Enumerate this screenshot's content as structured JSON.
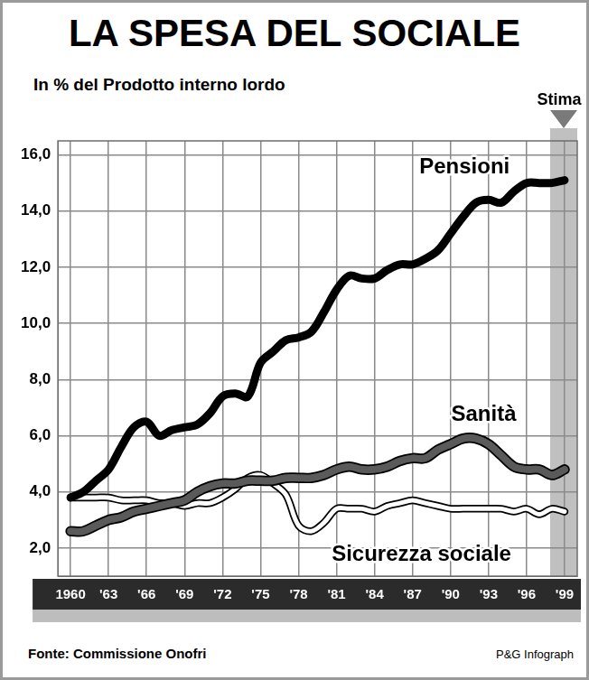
{
  "chart_data": {
    "type": "line",
    "title": "LA SPESA DEL SOCIALE",
    "subtitle": "In % del Prodotto interno lordo",
    "source": "Fonte: Commissione Onofri",
    "credit": "P&G Infograph",
    "annotations": [
      {
        "text": "Stima",
        "x": 1999
      }
    ],
    "x": [
      1960,
      1961,
      1962,
      1963,
      1964,
      1965,
      1966,
      1967,
      1968,
      1969,
      1970,
      1971,
      1972,
      1973,
      1974,
      1975,
      1976,
      1977,
      1978,
      1979,
      1980,
      1981,
      1982,
      1983,
      1984,
      1985,
      1986,
      1987,
      1988,
      1989,
      1990,
      1991,
      1992,
      1993,
      1994,
      1995,
      1996,
      1997,
      1998,
      1999
    ],
    "xlim": [
      1959,
      2000
    ],
    "xticks": [
      1960,
      {
        "value": 1963,
        "label": "'63"
      },
      {
        "value": 1966,
        "label": "'66"
      },
      {
        "value": 1969,
        "label": "'69"
      },
      {
        "value": 1972,
        "label": "'72"
      },
      {
        "value": 1975,
        "label": "'75"
      },
      {
        "value": 1978,
        "label": "'78"
      },
      {
        "value": 1981,
        "label": "'81"
      },
      {
        "value": 1984,
        "label": "'84"
      },
      {
        "value": 1987,
        "label": "'87"
      },
      {
        "value": 1990,
        "label": "'90"
      },
      {
        "value": 1993,
        "label": "'93"
      },
      {
        "value": 1996,
        "label": "'96"
      },
      {
        "value": 1999,
        "label": "'99"
      }
    ],
    "ylim": [
      1,
      16.5
    ],
    "yticks": [
      {
        "value": 2,
        "label": "2,0"
      },
      {
        "value": 4,
        "label": "4,0"
      },
      {
        "value": 6,
        "label": "6,0"
      },
      {
        "value": 8,
        "label": "8,0"
      },
      {
        "value": 10,
        "label": "10,0"
      },
      {
        "value": 12,
        "label": "12,0"
      },
      {
        "value": 14,
        "label": "14,0"
      },
      {
        "value": 16,
        "label": "16,0"
      }
    ],
    "grid": true,
    "series": [
      {
        "name": "Pensioni",
        "color": "#000000",
        "values": [
          3.8,
          4.0,
          4.4,
          4.8,
          5.6,
          6.3,
          6.5,
          6.0,
          6.2,
          6.3,
          6.4,
          6.8,
          7.4,
          7.5,
          7.4,
          8.6,
          9.0,
          9.4,
          9.5,
          9.7,
          10.4,
          11.2,
          11.7,
          11.6,
          11.6,
          11.9,
          12.1,
          12.1,
          12.3,
          12.6,
          13.2,
          13.8,
          14.3,
          14.4,
          14.3,
          14.7,
          15.0,
          15.0,
          15.0,
          15.1
        ]
      },
      {
        "name": "Sanità",
        "color": "#5a5a5a",
        "values": [
          2.6,
          2.6,
          2.8,
          3.0,
          3.1,
          3.3,
          3.4,
          3.5,
          3.6,
          3.7,
          4.0,
          4.2,
          4.3,
          4.3,
          4.4,
          4.4,
          4.4,
          4.5,
          4.5,
          4.5,
          4.6,
          4.8,
          4.9,
          4.8,
          4.8,
          4.9,
          5.1,
          5.2,
          5.2,
          5.5,
          5.7,
          5.9,
          5.9,
          5.7,
          5.3,
          4.9,
          4.8,
          4.8,
          4.6,
          4.8
        ]
      },
      {
        "name": "Sicurezza sociale",
        "color": "#ffffff",
        "values": [
          3.8,
          3.8,
          3.8,
          3.8,
          3.7,
          3.7,
          3.7,
          3.6,
          3.6,
          3.5,
          3.6,
          3.6,
          3.8,
          4.1,
          4.5,
          4.6,
          4.3,
          3.9,
          2.8,
          2.6,
          2.9,
          3.4,
          3.4,
          3.4,
          3.3,
          3.5,
          3.6,
          3.7,
          3.6,
          3.5,
          3.4,
          3.4,
          3.4,
          3.4,
          3.4,
          3.3,
          3.4,
          3.2,
          3.4,
          3.3
        ]
      }
    ]
  }
}
